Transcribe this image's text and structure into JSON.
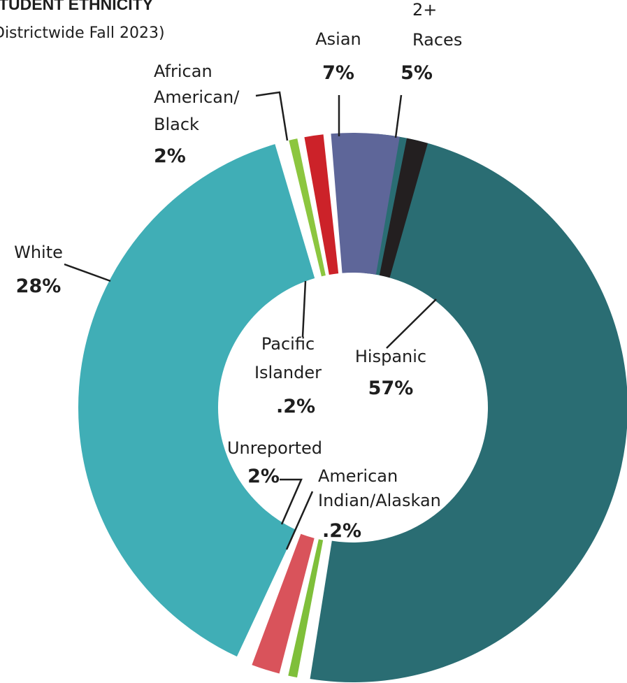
{
  "chart_data": {
    "type": "pie",
    "title": "TUDENT ETHNICITY",
    "subtitle": "Districtwide Fall 2023)",
    "donut": true,
    "slices": [
      {
        "key": "hispanic",
        "lines": [
          "Hispanic"
        ],
        "value_label": "57%",
        "value": 57,
        "color": "#2a6d73"
      },
      {
        "key": "amindian",
        "lines": [
          "American",
          "Indian/Alaskan"
        ],
        "value_label": ".2%",
        "value": 0.2,
        "color": "#7fbf3a"
      },
      {
        "key": "unreported",
        "lines": [
          "Unreported"
        ],
        "value_label": "2%",
        "value": 2,
        "color": "#d9535b"
      },
      {
        "key": "white",
        "lines": [
          "White"
        ],
        "value_label": "28%",
        "value": 28,
        "color": "#40aeb6"
      },
      {
        "key": "pacific",
        "lines": [
          "Pacific",
          "Islander"
        ],
        "value_label": ".2%",
        "value": 0.2,
        "color": "#8cc63f"
      },
      {
        "key": "african",
        "lines": [
          "African",
          "American/",
          "Black"
        ],
        "value_label": "2%",
        "value": 2,
        "color": "#cc2229"
      },
      {
        "key": "asian",
        "lines": [
          "Asian"
        ],
        "value_label": "7%",
        "value": 7,
        "color": "#5e6699"
      },
      {
        "key": "races",
        "lines": [
          "2+",
          "Races"
        ],
        "value_label": "5%",
        "value": 5,
        "color": "#231f20"
      }
    ]
  }
}
